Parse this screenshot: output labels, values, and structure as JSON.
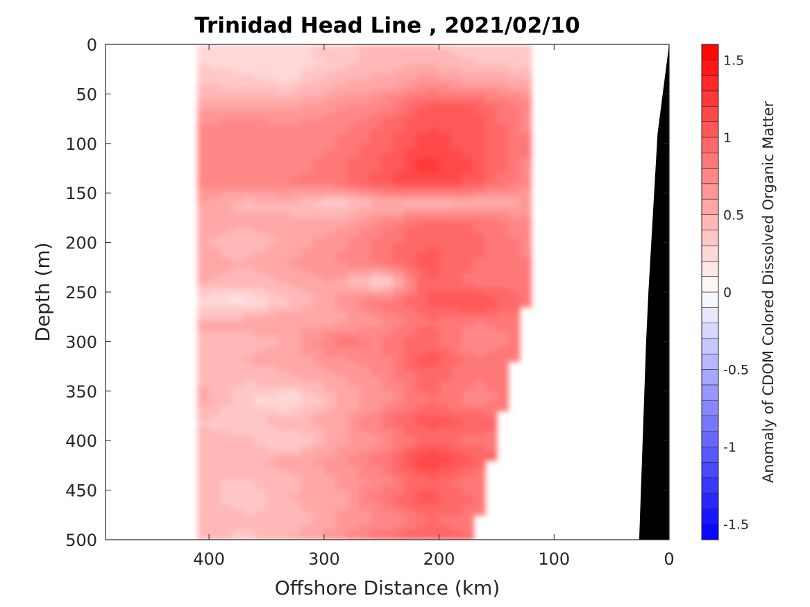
{
  "chart_data": {
    "type": "heatmap",
    "title": "Trinidad Head Line , 2021/02/10",
    "xlabel": "Offshore Distance (km)",
    "ylabel": "Depth (m)",
    "xlim": [
      490,
      0
    ],
    "ylim": [
      0,
      500
    ],
    "x_reversed": true,
    "y_reversed": true,
    "xticks": [
      "400",
      "300",
      "200",
      "100",
      "0"
    ],
    "xtick_values": [
      400,
      300,
      200,
      100,
      0
    ],
    "yticks": [
      "0",
      "50",
      "100",
      "150",
      "200",
      "250",
      "300",
      "350",
      "400",
      "450",
      "500"
    ],
    "ytick_values": [
      0,
      50,
      100,
      150,
      200,
      250,
      300,
      350,
      400,
      450,
      500
    ],
    "colorbar": {
      "label": "Anomaly of CDOM Colored Dissolved Organic Matter",
      "range": [
        -1.6,
        1.6
      ],
      "levels": 32,
      "ticks": [
        "1.5",
        "1",
        "0.5",
        "0",
        "-0.5",
        "-1",
        "-1.5"
      ],
      "tick_values": [
        1.5,
        1.0,
        0.5,
        0.0,
        -0.5,
        -1.0,
        -1.5
      ],
      "colormap": "blue-white-red",
      "neg_color": "#0000ff",
      "zero_color": "#ffffff",
      "pos_color": "#ff0000"
    },
    "data_extent_x": [
      410,
      120
    ],
    "data_extent_y": [
      0,
      500
    ],
    "seafloor_color": "#000000",
    "seafloor_profile": [
      {
        "distance": 0,
        "depth": 0
      },
      {
        "distance": 10,
        "depth": 90
      },
      {
        "distance": 18,
        "depth": 250
      },
      {
        "distance": 20,
        "depth": 300
      },
      {
        "distance": 26,
        "depth": 500
      }
    ],
    "profile_depths": [
      0,
      20,
      40,
      60,
      80,
      100,
      120,
      140,
      160,
      180,
      200,
      220,
      240,
      260,
      280,
      300,
      320,
      340,
      360,
      380,
      400,
      420,
      440,
      460,
      480,
      500
    ],
    "profiles": [
      {
        "distance": 410,
        "max_depth": 500,
        "values": [
          0.25,
          0.3,
          0.4,
          0.55,
          0.7,
          0.75,
          0.75,
          0.75,
          0.6,
          0.5,
          0.55,
          0.55,
          0.5,
          0.2,
          0.5,
          0.5,
          0.45,
          0.5,
          0.55,
          0.4,
          0.45,
          0.5,
          0.4,
          0.5,
          0.45,
          0.5
        ]
      },
      {
        "distance": 370,
        "max_depth": 500,
        "values": [
          0.2,
          0.25,
          0.35,
          0.55,
          0.75,
          0.75,
          0.8,
          0.75,
          0.45,
          0.55,
          0.4,
          0.5,
          0.45,
          0.15,
          0.55,
          0.45,
          0.5,
          0.4,
          0.35,
          0.3,
          0.45,
          0.45,
          0.4,
          0.3,
          0.45,
          0.35
        ]
      },
      {
        "distance": 330,
        "max_depth": 500,
        "values": [
          0.25,
          0.2,
          0.3,
          0.55,
          0.7,
          0.7,
          0.75,
          0.8,
          0.5,
          0.5,
          0.55,
          0.6,
          0.5,
          0.4,
          0.6,
          0.5,
          0.55,
          0.45,
          0.15,
          0.5,
          0.25,
          0.55,
          0.45,
          0.5,
          0.4,
          0.5
        ]
      },
      {
        "distance": 290,
        "max_depth": 500,
        "values": [
          0.35,
          0.35,
          0.5,
          0.65,
          0.75,
          0.8,
          0.85,
          0.85,
          0.3,
          0.55,
          0.65,
          0.7,
          0.6,
          0.6,
          0.55,
          0.85,
          0.65,
          0.55,
          0.5,
          0.55,
          0.55,
          0.65,
          0.6,
          0.55,
          0.6,
          0.65
        ]
      },
      {
        "distance": 250,
        "max_depth": 500,
        "values": [
          0.45,
          0.45,
          0.55,
          0.75,
          0.9,
          0.95,
          1.0,
          1.05,
          0.5,
          0.75,
          0.85,
          0.85,
          0.2,
          0.85,
          0.7,
          0.8,
          0.75,
          0.7,
          0.65,
          0.85,
          0.7,
          0.85,
          0.75,
          0.85,
          0.7,
          0.9
        ]
      },
      {
        "distance": 210,
        "max_depth": 500,
        "values": [
          0.4,
          0.5,
          0.7,
          1.0,
          1.1,
          1.15,
          1.25,
          1.2,
          0.4,
          0.95,
          1.0,
          1.05,
          1.0,
          1.0,
          0.9,
          1.0,
          1.05,
          0.95,
          0.9,
          1.05,
          0.95,
          1.25,
          1.0,
          1.05,
          0.9,
          1.0
        ]
      },
      {
        "distance": 170,
        "max_depth": 500,
        "values": [
          0.3,
          0.4,
          0.6,
          1.0,
          1.05,
          1.05,
          1.1,
          1.05,
          0.5,
          0.9,
          0.95,
          0.9,
          0.85,
          1.15,
          0.8,
          0.7,
          0.85,
          0.8,
          0.75,
          1.0,
          0.85,
          1.0,
          0.8,
          0.9,
          0.85,
          0.9
        ]
      },
      {
        "distance": 120,
        "max_depth": 240,
        "values": [
          0.3,
          0.35,
          0.55,
          0.75,
          0.75,
          0.8,
          0.75,
          0.7,
          0.6,
          0.7,
          0.75,
          0.8,
          0.85
        ]
      }
    ]
  }
}
